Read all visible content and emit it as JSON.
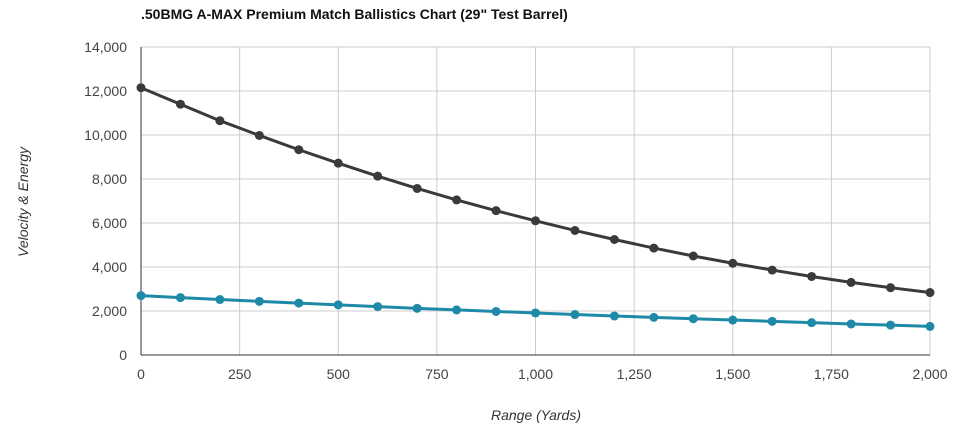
{
  "chart_data": {
    "type": "line",
    "title": ".50BMG A-MAX Premium Match Ballistics Chart (29\" Test Barrel)",
    "xlabel": "Range (Yards)",
    "ylabel": "Velocity & Energy",
    "xlim": [
      0,
      2000
    ],
    "ylim": [
      0,
      14000
    ],
    "x_ticks": [
      0,
      250,
      500,
      750,
      1000,
      1250,
      1500,
      1750,
      2000
    ],
    "x_tick_labels": [
      "0",
      "250",
      "500",
      "750",
      "1,000",
      "1,250",
      "1,500",
      "1,750",
      "2,000"
    ],
    "y_ticks": [
      0,
      2000,
      4000,
      6000,
      8000,
      10000,
      12000,
      14000
    ],
    "y_tick_labels": [
      "0",
      "2,000",
      "4,000",
      "6,000",
      "8,000",
      "10,000",
      "12,000",
      "14,000"
    ],
    "grid": true,
    "legend": "none",
    "x": [
      0,
      100,
      200,
      300,
      400,
      500,
      600,
      700,
      800,
      900,
      1000,
      1100,
      1200,
      1300,
      1400,
      1500,
      1600,
      1700,
      1800,
      1900,
      2000
    ],
    "series": [
      {
        "color": "#3a3a3a",
        "values": [
          12150,
          11400,
          10650,
          9980,
          9330,
          8720,
          8130,
          7570,
          7050,
          6560,
          6100,
          5660,
          5250,
          4860,
          4500,
          4170,
          3860,
          3570,
          3300,
          3060,
          2840
        ]
      },
      {
        "color": "#1f8aa8",
        "values": [
          2700,
          2610,
          2520,
          2440,
          2360,
          2280,
          2200,
          2120,
          2050,
          1980,
          1910,
          1840,
          1770,
          1710,
          1650,
          1590,
          1530,
          1470,
          1410,
          1360,
          1300
        ]
      }
    ]
  }
}
